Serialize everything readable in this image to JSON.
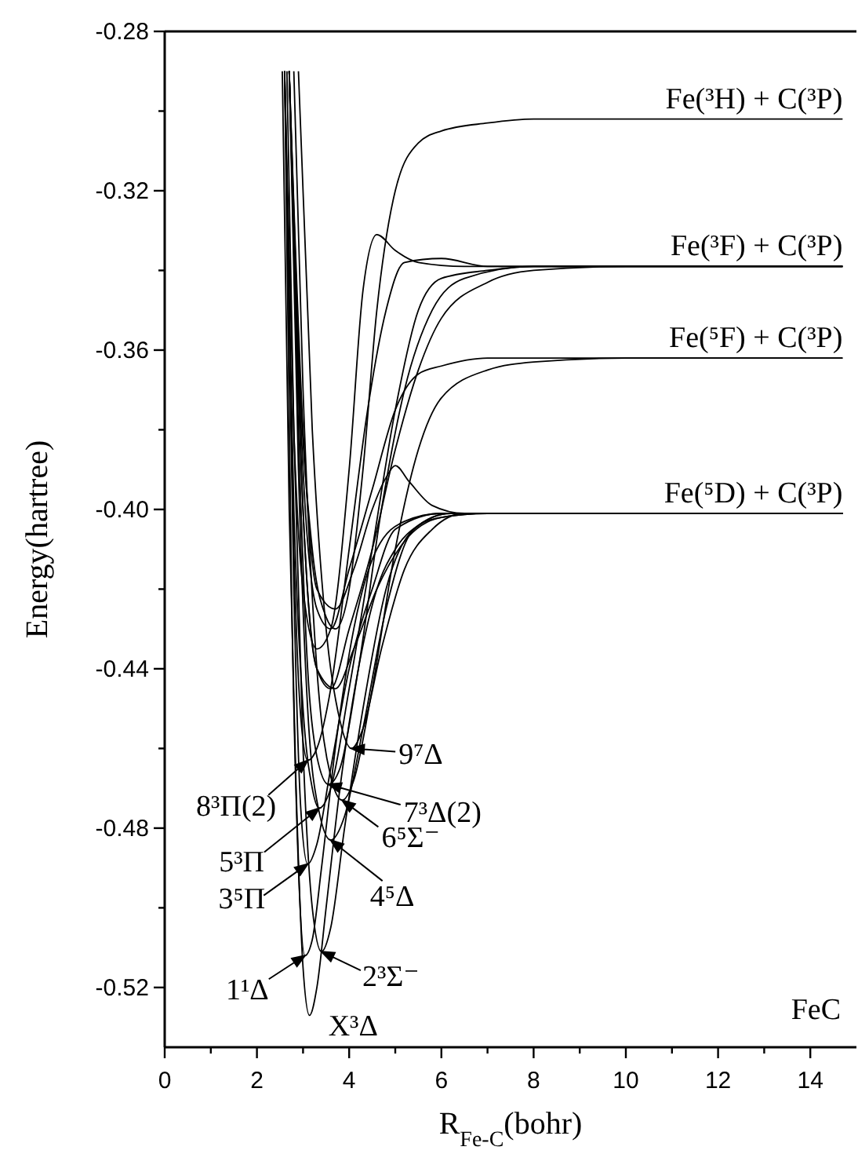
{
  "chart_data": {
    "type": "line",
    "xlabel": "R$_{Fe-C}$(bohr)",
    "ylabel": "Energy(hartree)",
    "xlim": [
      0,
      15
    ],
    "xticks": [
      0,
      {
        "value": 1,
        "label": null
      },
      2,
      {
        "value": 3,
        "label": null
      },
      4,
      {
        "value": 5,
        "label": null
      },
      6,
      {
        "value": 7,
        "label": null
      },
      8,
      {
        "value": 9,
        "label": null
      },
      10,
      {
        "value": 11,
        "label": null
      },
      12,
      {
        "value": 13,
        "label": null
      },
      14
    ],
    "ylim": [
      -0.535,
      -0.28
    ],
    "yticks": [
      {
        "value": -0.52,
        "label": "-0.52"
      },
      {
        "value": -0.5,
        "label": null
      },
      {
        "value": -0.48,
        "label": "-0.48"
      },
      {
        "value": -0.46,
        "label": null
      },
      {
        "value": -0.44,
        "label": "-0.44"
      },
      {
        "value": -0.42,
        "label": null
      },
      {
        "value": -0.4,
        "label": "-0.40"
      },
      {
        "value": -0.38,
        "label": null
      },
      {
        "value": -0.36,
        "label": "-0.36"
      },
      {
        "value": -0.34,
        "label": null
      },
      {
        "value": -0.32,
        "label": "-0.32"
      },
      {
        "value": -0.3,
        "label": null
      },
      {
        "value": -0.28,
        "label": "-0.28"
      }
    ],
    "grid": false,
    "marker": "none",
    "line_style": "solid",
    "series": [
      {
        "color": "#000000",
        "x": [
          2.55,
          2.7,
          2.85,
          3.0,
          3.14,
          3.3,
          3.5,
          3.8,
          4.2,
          4.6,
          5,
          5.5,
          6,
          7,
          8,
          10,
          14.7
        ],
        "values": [
          -0.29,
          -0.4,
          -0.47,
          -0.515,
          -0.527,
          -0.52,
          -0.5,
          -0.47,
          -0.44,
          -0.42,
          -0.41,
          -0.404,
          -0.402,
          -0.401,
          -0.401,
          -0.401,
          -0.401
        ]
      },
      {
        "color": "#000000",
        "x": [
          2.6,
          2.75,
          2.9,
          3.04,
          3.2,
          3.4,
          3.7,
          4.1,
          4.6,
          5.2,
          6,
          7,
          14.7
        ],
        "values": [
          -0.29,
          -0.42,
          -0.49,
          -0.512,
          -0.508,
          -0.49,
          -0.46,
          -0.43,
          -0.41,
          -0.403,
          -0.401,
          -0.401,
          -0.401
        ]
      },
      {
        "color": "#000000",
        "x": [
          2.65,
          2.8,
          3.0,
          3.2,
          3.4,
          3.6,
          3.9,
          4.3,
          4.8,
          5.4,
          6.2,
          7.5,
          14.7
        ],
        "values": [
          -0.29,
          -0.38,
          -0.46,
          -0.5,
          -0.511,
          -0.505,
          -0.48,
          -0.45,
          -0.42,
          -0.405,
          -0.401,
          -0.401,
          -0.401
        ]
      },
      {
        "color": "#000000",
        "x": [
          2.6,
          2.8,
          2.95,
          3.1,
          3.3,
          3.6,
          4,
          4.5,
          5,
          6,
          7,
          14.7
        ],
        "values": [
          -0.29,
          -0.42,
          -0.475,
          -0.489,
          -0.484,
          -0.465,
          -0.44,
          -0.42,
          -0.405,
          -0.401,
          -0.401,
          -0.401
        ]
      },
      {
        "color": "#000000",
        "x": [
          2.7,
          2.9,
          3.1,
          3.35,
          3.6,
          3.9,
          4.3,
          4.8,
          5.4,
          6.2,
          7.5,
          14.7
        ],
        "values": [
          -0.29,
          -0.39,
          -0.45,
          -0.476,
          -0.483,
          -0.477,
          -0.455,
          -0.425,
          -0.405,
          -0.401,
          -0.401,
          -0.401
        ]
      },
      {
        "color": "#000000",
        "x": [
          2.6,
          2.8,
          3.0,
          3.2,
          3.35,
          3.6,
          4,
          4.5,
          5,
          5.5,
          6,
          7,
          8,
          14.7
        ],
        "values": [
          -0.29,
          -0.4,
          -0.45,
          -0.47,
          -0.475,
          -0.47,
          -0.445,
          -0.41,
          -0.375,
          -0.35,
          -0.342,
          -0.34,
          -0.339,
          -0.339
        ]
      },
      {
        "color": "#000000",
        "x": [
          2.8,
          3.0,
          3.3,
          3.6,
          3.85,
          4.1,
          4.5,
          5,
          5.5,
          6,
          7,
          8,
          10,
          14.7
        ],
        "values": [
          -0.29,
          -0.37,
          -0.44,
          -0.467,
          -0.473,
          -0.468,
          -0.445,
          -0.41,
          -0.385,
          -0.372,
          -0.365,
          -0.363,
          -0.362,
          -0.362
        ]
      },
      {
        "color": "#000000",
        "x": [
          2.7,
          2.9,
          3.1,
          3.3,
          3.55,
          3.8,
          4.2,
          4.7,
          5.2,
          5.8,
          6.5,
          8,
          14.7
        ],
        "values": [
          -0.29,
          -0.38,
          -0.44,
          -0.462,
          -0.469,
          -0.465,
          -0.44,
          -0.4,
          -0.37,
          -0.35,
          -0.342,
          -0.339,
          -0.339
        ]
      },
      {
        "color": "#000000",
        "x": [
          2.6,
          2.8,
          2.95,
          3.1,
          3.3,
          3.6,
          4,
          4.4,
          4.8,
          5.2,
          6,
          7,
          14.7
        ],
        "values": [
          -0.29,
          -0.41,
          -0.452,
          -0.463,
          -0.46,
          -0.445,
          -0.41,
          -0.375,
          -0.35,
          -0.338,
          -0.337,
          -0.339,
          -0.339
        ]
      },
      {
        "color": "#000000",
        "x": [
          2.9,
          3.2,
          3.5,
          3.8,
          4.05,
          4.3,
          4.7,
          5.2,
          5.8,
          6.5,
          8,
          14.7
        ],
        "values": [
          -0.29,
          -0.38,
          -0.43,
          -0.453,
          -0.46,
          -0.455,
          -0.435,
          -0.415,
          -0.405,
          -0.401,
          -0.401,
          -0.401
        ]
      },
      {
        "color": "#000000",
        "x": [
          2.7,
          2.9,
          3.2,
          3.5,
          3.7,
          4,
          4.3,
          4.6,
          5,
          5.5,
          6,
          7,
          8,
          10,
          14.7
        ],
        "values": [
          -0.29,
          -0.36,
          -0.41,
          -0.427,
          -0.43,
          -0.42,
          -0.39,
          -0.35,
          -0.32,
          -0.308,
          -0.305,
          -0.303,
          -0.302,
          -0.302,
          -0.302
        ]
      },
      {
        "color": "#000000",
        "x": [
          2.6,
          2.8,
          3.0,
          3.3,
          3.6,
          4,
          4.3,
          4.6,
          5,
          5.5,
          6.5,
          8,
          14.7
        ],
        "values": [
          -0.29,
          -0.38,
          -0.42,
          -0.435,
          -0.43,
          -0.39,
          -0.345,
          -0.331,
          -0.335,
          -0.338,
          -0.339,
          -0.339,
          -0.339
        ]
      },
      {
        "color": "#000000",
        "x": [
          2.7,
          3,
          3.3,
          3.6,
          4,
          4.5,
          5,
          5.5,
          6,
          7,
          8,
          10,
          14.7
        ],
        "values": [
          -0.29,
          -0.39,
          -0.425,
          -0.43,
          -0.415,
          -0.395,
          -0.375,
          -0.366,
          -0.364,
          -0.362,
          -0.362,
          -0.362,
          -0.362
        ]
      },
      {
        "color": "#000000",
        "x": [
          2.7,
          3,
          3.3,
          3.7,
          4.1,
          4.5,
          4.8,
          5.0,
          5.3,
          5.8,
          6.5,
          8,
          14.7
        ],
        "values": [
          -0.29,
          -0.38,
          -0.42,
          -0.425,
          -0.415,
          -0.4,
          -0.392,
          -0.389,
          -0.393,
          -0.399,
          -0.401,
          -0.401,
          -0.401
        ]
      },
      {
        "color": "#000000",
        "x": [
          2.7,
          3,
          3.3,
          3.6,
          4,
          4.5,
          5,
          5.5,
          6,
          7,
          8,
          10,
          14.7
        ],
        "values": [
          -0.29,
          -0.4,
          -0.44,
          -0.445,
          -0.43,
          -0.41,
          -0.385,
          -0.365,
          -0.352,
          -0.343,
          -0.34,
          -0.339,
          -0.339
        ]
      },
      {
        "color": "#000000",
        "x": [
          2.7,
          3,
          3.3,
          3.7,
          4.1,
          4.6,
          5.2,
          6,
          7,
          8,
          14.7
        ],
        "values": [
          -0.29,
          -0.4,
          -0.44,
          -0.445,
          -0.435,
          -0.42,
          -0.408,
          -0.402,
          -0.401,
          -0.401,
          -0.401
        ]
      }
    ],
    "annotations": [
      {
        "text": "Fe(³H) + C(³P)",
        "x": 14.7,
        "y": -0.302
      },
      {
        "text": "Fe(³F) + C(³P)",
        "x": 14.7,
        "y": -0.339
      },
      {
        "text": "Fe(⁵F) + C(³P)",
        "x": 14.7,
        "y": -0.362
      },
      {
        "text": "Fe(⁵D) + C(³P)",
        "x": 14.7,
        "y": -0.401
      },
      {
        "text": "X³Δ",
        "x": 3.14,
        "y": -0.527
      },
      {
        "text": "1¹Δ",
        "x": 3.04,
        "y": -0.512
      },
      {
        "text": "2³Σ⁻",
        "x": 3.4,
        "y": -0.511
      },
      {
        "text": "3⁵Π",
        "x": 3.1,
        "y": -0.489
      },
      {
        "text": "4⁵Δ",
        "x": 3.6,
        "y": -0.483
      },
      {
        "text": "5³Π",
        "x": 3.35,
        "y": -0.475
      },
      {
        "text": "6⁵Σ⁻",
        "x": 3.85,
        "y": -0.473
      },
      {
        "text": "7³Δ(2)",
        "x": 3.55,
        "y": -0.469
      },
      {
        "text": "8³Π(2)",
        "x": 3.1,
        "y": -0.463
      },
      {
        "text": "9⁷Δ",
        "x": 4.05,
        "y": -0.46
      },
      "FeC"
    ]
  }
}
